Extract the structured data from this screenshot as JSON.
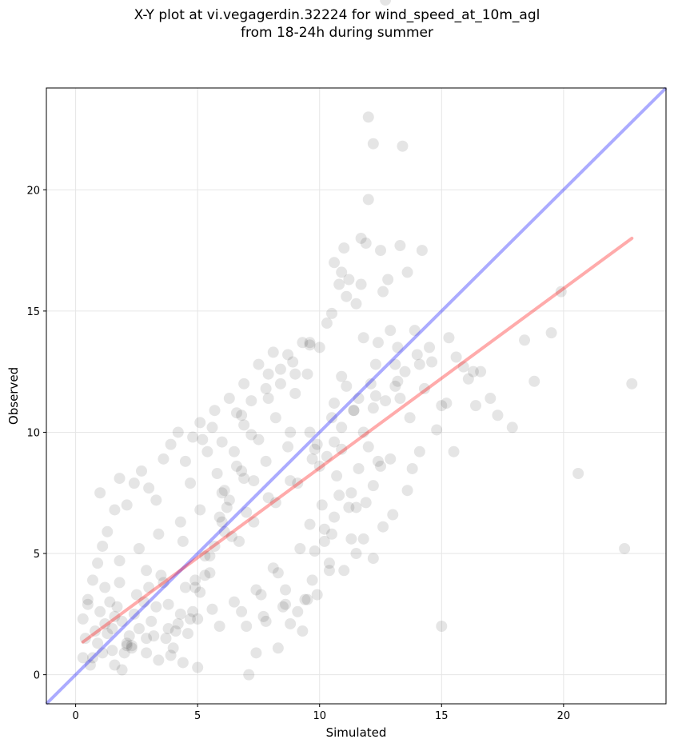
{
  "title_line1": "X-Y plot at vi.vegagerdin.32224 for wind_speed_at_10m_agl",
  "title_line2": "from 18-24h during summer",
  "chart_data": {
    "type": "scatter",
    "xlabel": "Simulated",
    "ylabel": "Observed",
    "xlim": [
      -1.2,
      24.2
    ],
    "ylim": [
      -1.2,
      24.2
    ],
    "xticks": [
      0,
      5,
      10,
      15,
      20
    ],
    "yticks": [
      0,
      5,
      10,
      15,
      20
    ],
    "grid": true,
    "colors": {
      "points": "#000000",
      "identity_line": "#0000ff",
      "fit_line": "#ff0000",
      "grid": "#e6e6e6"
    },
    "lines": [
      {
        "name": "identity",
        "x": [
          -1.2,
          24.2
        ],
        "y": [
          -1.2,
          24.2
        ]
      },
      {
        "name": "fit",
        "x": [
          0.3,
          22.8
        ],
        "y": [
          1.35,
          18.0
        ]
      }
    ],
    "points_x": [
      12.0,
      12.2,
      13.4,
      12.0,
      11.7,
      12.5,
      13.3,
      13.6,
      14.2,
      11.9,
      11.0,
      10.6,
      10.9,
      11.2,
      10.8,
      12.8,
      11.5,
      11.1,
      10.5,
      12.6,
      13.2,
      13.9,
      14.5,
      11.8,
      12.4,
      12.9,
      13.5,
      14.6,
      15.3,
      15.9,
      16.3,
      17.0,
      16.1,
      15.0,
      14.8,
      15.5,
      16.4,
      18.4,
      19.5,
      19.9,
      17.9,
      18.8,
      20.6,
      22.5,
      22.8,
      12.3,
      11.6,
      12.1,
      12.7,
      13.1,
      13.7,
      14.0,
      12.0,
      11.4,
      10.9,
      10.3,
      10.7,
      11.3,
      12.4,
      13.0,
      13.6,
      12.6,
      12.2,
      11.8,
      11.6,
      10.6,
      9.8,
      10.1,
      10.4,
      9.4,
      9.7,
      9.1,
      9.9,
      10.2,
      10.8,
      11.5,
      12.2,
      12.9,
      13.8,
      11.9,
      11.0,
      10.5,
      9.6,
      8.8,
      9.3,
      8.6,
      8.1,
      8.5,
      7.8,
      8.3,
      7.4,
      7.0,
      7.6,
      9.0,
      9.5,
      10.0,
      10.6,
      11.1,
      10.3,
      9.6,
      8.9,
      8.4,
      7.9,
      8.2,
      7.5,
      6.9,
      6.5,
      7.2,
      6.8,
      6.1,
      6.6,
      5.9,
      6.3,
      5.7,
      6.0,
      5.5,
      5.1,
      5.3,
      4.8,
      4.9,
      4.6,
      4.3,
      4.5,
      4.0,
      4.2,
      3.8,
      3.5,
      3.7,
      3.3,
      3.0,
      3.1,
      2.8,
      2.6,
      2.9,
      2.4,
      2.2,
      2.5,
      2.0,
      1.9,
      2.1,
      1.7,
      1.8,
      1.5,
      1.6,
      1.3,
      1.4,
      1.1,
      1.2,
      0.9,
      1.0,
      0.7,
      0.8,
      0.5,
      0.6,
      0.4,
      0.3,
      0.3,
      0.5,
      0.7,
      0.9,
      1.1,
      1.3,
      1.0,
      1.6,
      1.8,
      2.1,
      2.4,
      2.7,
      3.0,
      3.3,
      3.6,
      3.9,
      4.2,
      4.5,
      4.8,
      5.1,
      5.4,
      5.7,
      6.0,
      6.3,
      6.6,
      6.9,
      7.2,
      7.5,
      7.8,
      8.1,
      8.4,
      8.7,
      9.0,
      9.3,
      9.6,
      9.9,
      5.6,
      6.8,
      7.3,
      7.9,
      5.2,
      4.7,
      5.8,
      6.2,
      6.7,
      7.1,
      5.0,
      4.4,
      3.9,
      3.4,
      2.9,
      2.3,
      1.9,
      1.6,
      2.3,
      3.2,
      4.1,
      5.0,
      5.9,
      6.8,
      7.7,
      8.6,
      9.5,
      10.4,
      11.3,
      12.2,
      8.8,
      9.8,
      10.9,
      11.7,
      13.1,
      14.3,
      15.2,
      15.6,
      16.6,
      17.3,
      13.3,
      14.1,
      12.5,
      11.2,
      10.2,
      9.2,
      8.3,
      7.4,
      6.5,
      5.6,
      4.7,
      3.8,
      2.9,
      2.1,
      1.5,
      1.2,
      1.8,
      2.6,
      3.4,
      4.3,
      5.1,
      6.0,
      6.9,
      7.8,
      8.7,
      9.6,
      10.5,
      11.4,
      12.3,
      13.2,
      14.1,
      15.0,
      3.6,
      4.4,
      5.3,
      6.1,
      7.0,
      7.9,
      8.8,
      9.7,
      10.6,
      11.5,
      4.9,
      5.5,
      6.4,
      7.3,
      8.2,
      9.1,
      10.0,
      10.9,
      11.8,
      12.7
    ],
    "points_y": [
      23.0,
      21.9,
      21.8,
      19.6,
      18.0,
      17.5,
      17.7,
      16.6,
      17.5,
      17.8,
      17.6,
      17.0,
      16.6,
      16.3,
      16.1,
      16.3,
      15.3,
      15.6,
      14.9,
      15.8,
      13.5,
      14.2,
      13.5,
      13.9,
      13.7,
      14.2,
      12.5,
      12.9,
      13.9,
      12.7,
      12.5,
      11.4,
      12.2,
      11.1,
      10.1,
      9.2,
      11.1,
      13.8,
      14.1,
      15.8,
      10.2,
      12.1,
      8.3,
      5.2,
      12.0,
      12.8,
      11.4,
      12.0,
      11.3,
      11.9,
      10.6,
      13.2,
      9.4,
      10.9,
      10.2,
      9.0,
      8.2,
      7.5,
      8.8,
      6.6,
      7.6,
      6.1,
      4.8,
      5.6,
      8.5,
      6.5,
      5.1,
      7.0,
      4.6,
      3.1,
      3.9,
      2.6,
      3.3,
      6.0,
      7.4,
      6.9,
      7.8,
      8.9,
      8.5,
      7.1,
      4.3,
      5.8,
      6.2,
      2.1,
      1.8,
      3.5,
      4.4,
      2.8,
      2.2,
      1.1,
      0.9,
      2.0,
      3.3,
      11.6,
      12.4,
      13.5,
      11.2,
      11.9,
      14.5,
      13.7,
      12.9,
      12.0,
      11.4,
      10.6,
      9.7,
      10.3,
      9.2,
      9.9,
      8.4,
      7.6,
      8.6,
      6.5,
      7.2,
      5.3,
      6.3,
      4.2,
      3.4,
      4.9,
      2.6,
      3.9,
      1.7,
      2.5,
      3.6,
      1.1,
      2.1,
      2.9,
      4.1,
      1.5,
      2.8,
      3.6,
      2.2,
      3.0,
      1.9,
      4.3,
      2.5,
      1.6,
      3.3,
      0.9,
      2.2,
      1.3,
      2.8,
      3.8,
      1.0,
      2.4,
      1.7,
      3.0,
      0.9,
      2.1,
      1.3,
      2.6,
      0.7,
      1.8,
      2.9,
      0.4,
      1.5,
      0.7,
      2.3,
      3.1,
      3.9,
      4.6,
      5.3,
      5.9,
      7.5,
      6.8,
      8.1,
      7.0,
      7.9,
      8.4,
      7.7,
      7.2,
      8.9,
      9.5,
      10.0,
      8.8,
      9.8,
      10.4,
      9.2,
      10.9,
      9.6,
      11.4,
      10.8,
      12.0,
      11.3,
      12.8,
      11.8,
      13.3,
      12.6,
      13.2,
      12.4,
      13.7,
      13.6,
      9.5,
      10.2,
      10.7,
      8.0,
      12.4,
      9.7,
      7.9,
      8.3,
      6.9,
      5.5,
      0.0,
      0.3,
      0.5,
      0.8,
      0.6,
      0.9,
      1.2,
      0.2,
      0.4,
      1.1,
      1.6,
      1.8,
      2.3,
      2.0,
      2.6,
      2.4,
      2.9,
      3.1,
      4.3,
      5.6,
      11.0,
      10.0,
      9.3,
      12.3,
      16.1,
      12.8,
      11.8,
      11.2,
      13.1,
      12.5,
      10.7,
      11.4,
      9.2,
      8.6,
      6.9,
      5.5,
      5.2,
      4.2,
      3.5,
      3.0,
      2.7,
      2.3,
      1.9,
      1.5,
      1.2,
      1.9,
      3.6,
      4.7,
      5.2,
      5.8,
      6.3,
      6.8,
      7.5,
      8.1,
      8.8,
      9.4,
      10.0,
      10.6,
      10.9,
      11.5,
      12.1,
      12.8,
      2.0,
      3.8,
      5.5,
      4.1,
      5.9,
      6.7,
      7.3,
      8.0,
      8.9,
      9.6,
      5.0,
      3.6,
      4.9,
      5.7,
      6.3,
      7.1,
      7.9,
      8.6,
      9.3,
      10.0
    ]
  }
}
